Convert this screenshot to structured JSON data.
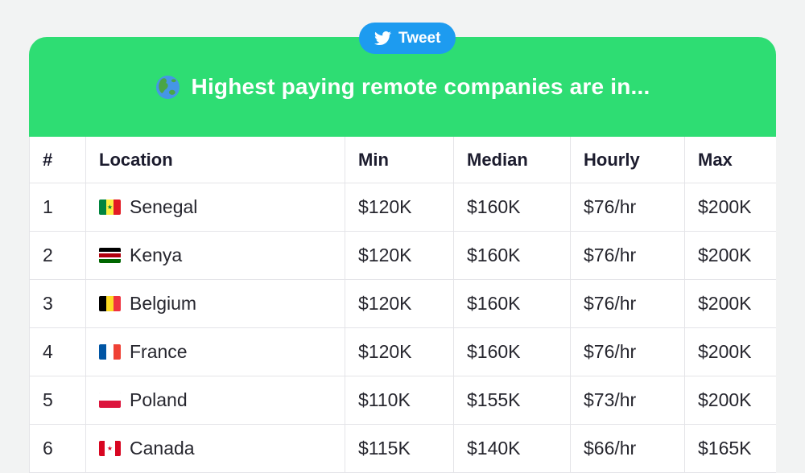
{
  "page": {
    "background": "#f2f3f3"
  },
  "tweet_button": {
    "label": "Tweet",
    "color": "#1d9bf0",
    "icon": "twitter-bird-icon"
  },
  "banner": {
    "title": "Highest paying remote companies are in...",
    "icon": "globe-americas-icon",
    "background": "#2edd73"
  },
  "table": {
    "columns": [
      "#",
      "Location",
      "Min",
      "Median",
      "Hourly",
      "Max"
    ],
    "rows": [
      {
        "rank": "1",
        "flag": "senegal",
        "location": "Senegal",
        "min": "$120K",
        "median": "$160K",
        "hourly": "$76/hr",
        "max": "$200K"
      },
      {
        "rank": "2",
        "flag": "kenya",
        "location": "Kenya",
        "min": "$120K",
        "median": "$160K",
        "hourly": "$76/hr",
        "max": "$200K"
      },
      {
        "rank": "3",
        "flag": "belgium",
        "location": "Belgium",
        "min": "$120K",
        "median": "$160K",
        "hourly": "$76/hr",
        "max": "$200K"
      },
      {
        "rank": "4",
        "flag": "france",
        "location": "France",
        "min": "$120K",
        "median": "$160K",
        "hourly": "$76/hr",
        "max": "$200K"
      },
      {
        "rank": "5",
        "flag": "poland",
        "location": "Poland",
        "min": "$110K",
        "median": "$155K",
        "hourly": "$73/hr",
        "max": "$200K"
      },
      {
        "rank": "6",
        "flag": "canada",
        "location": "Canada",
        "min": "$115K",
        "median": "$140K",
        "hourly": "$66/hr",
        "max": "$165K"
      }
    ]
  },
  "flags": {
    "senegal": {
      "orientation": "vertical",
      "stripes": [
        "#00853f",
        "#fdef42",
        "#e31b23"
      ],
      "badge": {
        "shape": "star",
        "color": "#00853f"
      }
    },
    "kenya": {
      "orientation": "horizontal",
      "stripes": [
        "#000000",
        "#ffffff",
        "#b1000e",
        "#ffffff",
        "#006600"
      ],
      "weights": [
        3,
        1,
        3,
        1,
        3
      ]
    },
    "belgium": {
      "orientation": "vertical",
      "stripes": [
        "#000000",
        "#fdda24",
        "#ef3340"
      ]
    },
    "france": {
      "orientation": "vertical",
      "stripes": [
        "#0055a4",
        "#ffffff",
        "#ef4135"
      ]
    },
    "poland": {
      "orientation": "horizontal",
      "stripes": [
        "#ffffff",
        "#dc143c"
      ]
    },
    "canada": {
      "orientation": "vertical",
      "stripes": [
        "#d80621",
        "#ffffff",
        "#d80621"
      ],
      "weights": [
        1,
        2,
        1
      ],
      "badge": {
        "shape": "leaf",
        "color": "#d80621"
      }
    }
  }
}
